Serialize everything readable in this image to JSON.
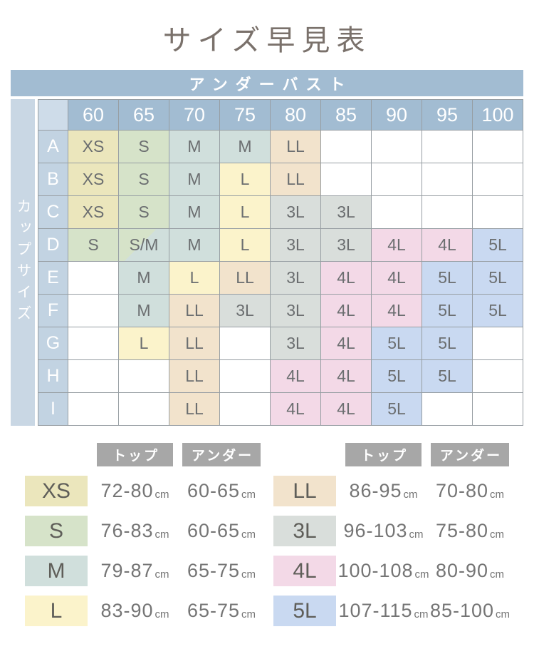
{
  "title": "サイズ早見表",
  "colors": {
    "band_blue": "#a2bcd2",
    "corner_blue": "#cedce9",
    "strip_blue": "#c9d7e4",
    "cup_blue": "#c2d3e2",
    "border_gray": "#979ea3",
    "legend_header_gray": "#a7a7a7",
    "title_color": "#7a716b",
    "cell_text": "#6b6e70",
    "value_text": "#757575",
    "label_text": "#5f5e59"
  },
  "size_colors": {
    "XS": "#ebe6bc",
    "S": "#d6e3c9",
    "M": "#d0dfdc",
    "L": "#fbf3cb",
    "LL": "#f2e3cc",
    "3L": "#d9dedb",
    "4L": "#f3d9e7",
    "5L": "#c9d9f1"
  },
  "size_table": {
    "underbust_label": "アンダーバスト",
    "cup_label": "カップサイズ",
    "columns": [
      "60",
      "65",
      "70",
      "75",
      "80",
      "85",
      "90",
      "95",
      "100"
    ],
    "rows": [
      {
        "cup": "A",
        "cells": [
          "XS",
          "S",
          "M",
          "M",
          "LL",
          "",
          "",
          "",
          ""
        ]
      },
      {
        "cup": "B",
        "cells": [
          "XS",
          "S",
          "M",
          "L",
          "LL",
          "",
          "",
          "",
          ""
        ]
      },
      {
        "cup": "C",
        "cells": [
          "XS",
          "S",
          "M",
          "L",
          "3L",
          "3L",
          "",
          "",
          ""
        ]
      },
      {
        "cup": "D",
        "cells": [
          "S",
          "S/M",
          "M",
          "L",
          "3L",
          "3L",
          "4L",
          "4L",
          "5L"
        ]
      },
      {
        "cup": "E",
        "cells": [
          "",
          "M",
          "L",
          "LL",
          "3L",
          "4L",
          "4L",
          "5L",
          "5L"
        ]
      },
      {
        "cup": "F",
        "cells": [
          "",
          "M",
          "LL",
          "3L",
          "3L",
          "4L",
          "4L",
          "5L",
          "5L"
        ]
      },
      {
        "cup": "G",
        "cells": [
          "",
          "L",
          "LL",
          "",
          "3L",
          "4L",
          "5L",
          "5L",
          ""
        ]
      },
      {
        "cup": "H",
        "cells": [
          "",
          "",
          "LL",
          "",
          "4L",
          "4L",
          "5L",
          "5L",
          ""
        ]
      },
      {
        "cup": "I",
        "cells": [
          "",
          "",
          "LL",
          "",
          "4L",
          "4L",
          "5L",
          "",
          ""
        ]
      }
    ]
  },
  "legend": {
    "col_headers": [
      "トップ",
      "アンダー"
    ],
    "unit": "cm",
    "left": [
      {
        "size": "XS",
        "top": "72-80",
        "under": "60-65"
      },
      {
        "size": "S",
        "top": "76-83",
        "under": "60-65"
      },
      {
        "size": "M",
        "top": "79-87",
        "under": "65-75"
      },
      {
        "size": "L",
        "top": "83-90",
        "under": "65-75"
      }
    ],
    "right": [
      {
        "size": "LL",
        "top": "86-95",
        "under": "70-80"
      },
      {
        "size": "3L",
        "top": "96-103",
        "under": "75-80"
      },
      {
        "size": "4L",
        "top": "100-108",
        "under": "80-90"
      },
      {
        "size": "5L",
        "top": "107-115",
        "under": "85-100"
      }
    ]
  }
}
